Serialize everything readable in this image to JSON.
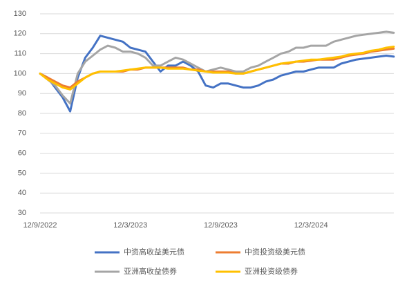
{
  "chart_data": {
    "type": "line",
    "categories": [
      "12/9/2022",
      null,
      null,
      null,
      null,
      null,
      null,
      null,
      null,
      null,
      null,
      null,
      "12/3/2023",
      null,
      null,
      null,
      null,
      null,
      null,
      null,
      null,
      null,
      null,
      null,
      "12/9/2023",
      null,
      null,
      null,
      null,
      null,
      null,
      null,
      null,
      null,
      null,
      null,
      "12/3/2024",
      null,
      null,
      null,
      null,
      null,
      null,
      null,
      null,
      null,
      null,
      null
    ],
    "ylim": [
      30,
      130
    ],
    "yticks": [
      30,
      40,
      50,
      60,
      70,
      80,
      90,
      100,
      110,
      120,
      130
    ],
    "grid": true,
    "series": [
      {
        "name": "中资高收益美元债",
        "color": "#4472c4",
        "values": [
          100,
          98,
          93,
          88,
          81,
          98,
          108,
          113,
          119,
          118,
          117,
          116,
          113,
          112,
          111,
          106,
          101,
          104,
          104,
          106,
          104,
          101,
          94,
          93,
          95,
          95,
          94,
          93,
          93,
          94,
          96,
          97,
          99,
          100,
          101,
          101,
          102,
          103,
          103,
          103,
          105,
          106,
          107,
          107.5,
          108,
          108.5,
          109,
          108.5
        ]
      },
      {
        "name": "中资投资级美元债",
        "color": "#ed7d31",
        "values": [
          100,
          98,
          96,
          94,
          93,
          96,
          98,
          100,
          101,
          101,
          101,
          101,
          102,
          102,
          103,
          103,
          103,
          103,
          103,
          103,
          102,
          102,
          101,
          101,
          101,
          101,
          100,
          100,
          101,
          102,
          103,
          104,
          105,
          105,
          106,
          106,
          106.5,
          107,
          107,
          107,
          108,
          109,
          109.5,
          110,
          111,
          111.5,
          112,
          112.5
        ]
      },
      {
        "name": "亚洲高收益债券",
        "color": "#a5a5a5",
        "values": [
          100,
          97,
          94,
          89,
          85,
          100,
          106,
          109,
          112,
          114,
          113,
          111,
          111,
          110,
          108,
          104,
          104,
          106,
          108,
          107,
          105,
          103,
          101,
          102,
          103,
          102,
          101,
          101,
          103,
          104,
          106,
          108,
          110,
          111,
          113,
          113,
          114,
          114,
          114,
          116,
          117,
          118,
          119,
          119.5,
          120,
          120.5,
          121,
          120.5
        ]
      },
      {
        "name": "亚洲投资级债券",
        "color": "#ffc000",
        "values": [
          100,
          97,
          95,
          93,
          92,
          95,
          98,
          100,
          101,
          101,
          101,
          101.5,
          102,
          102.5,
          103,
          103,
          103,
          102.5,
          102.5,
          102.5,
          102,
          101.5,
          101,
          100.5,
          100.5,
          100.5,
          100,
          100,
          101,
          102,
          103,
          104,
          105,
          105.5,
          106,
          106.5,
          107,
          107,
          107.5,
          108,
          108.5,
          109.5,
          110,
          110.5,
          111.5,
          112,
          113,
          113.5
        ]
      }
    ]
  }
}
